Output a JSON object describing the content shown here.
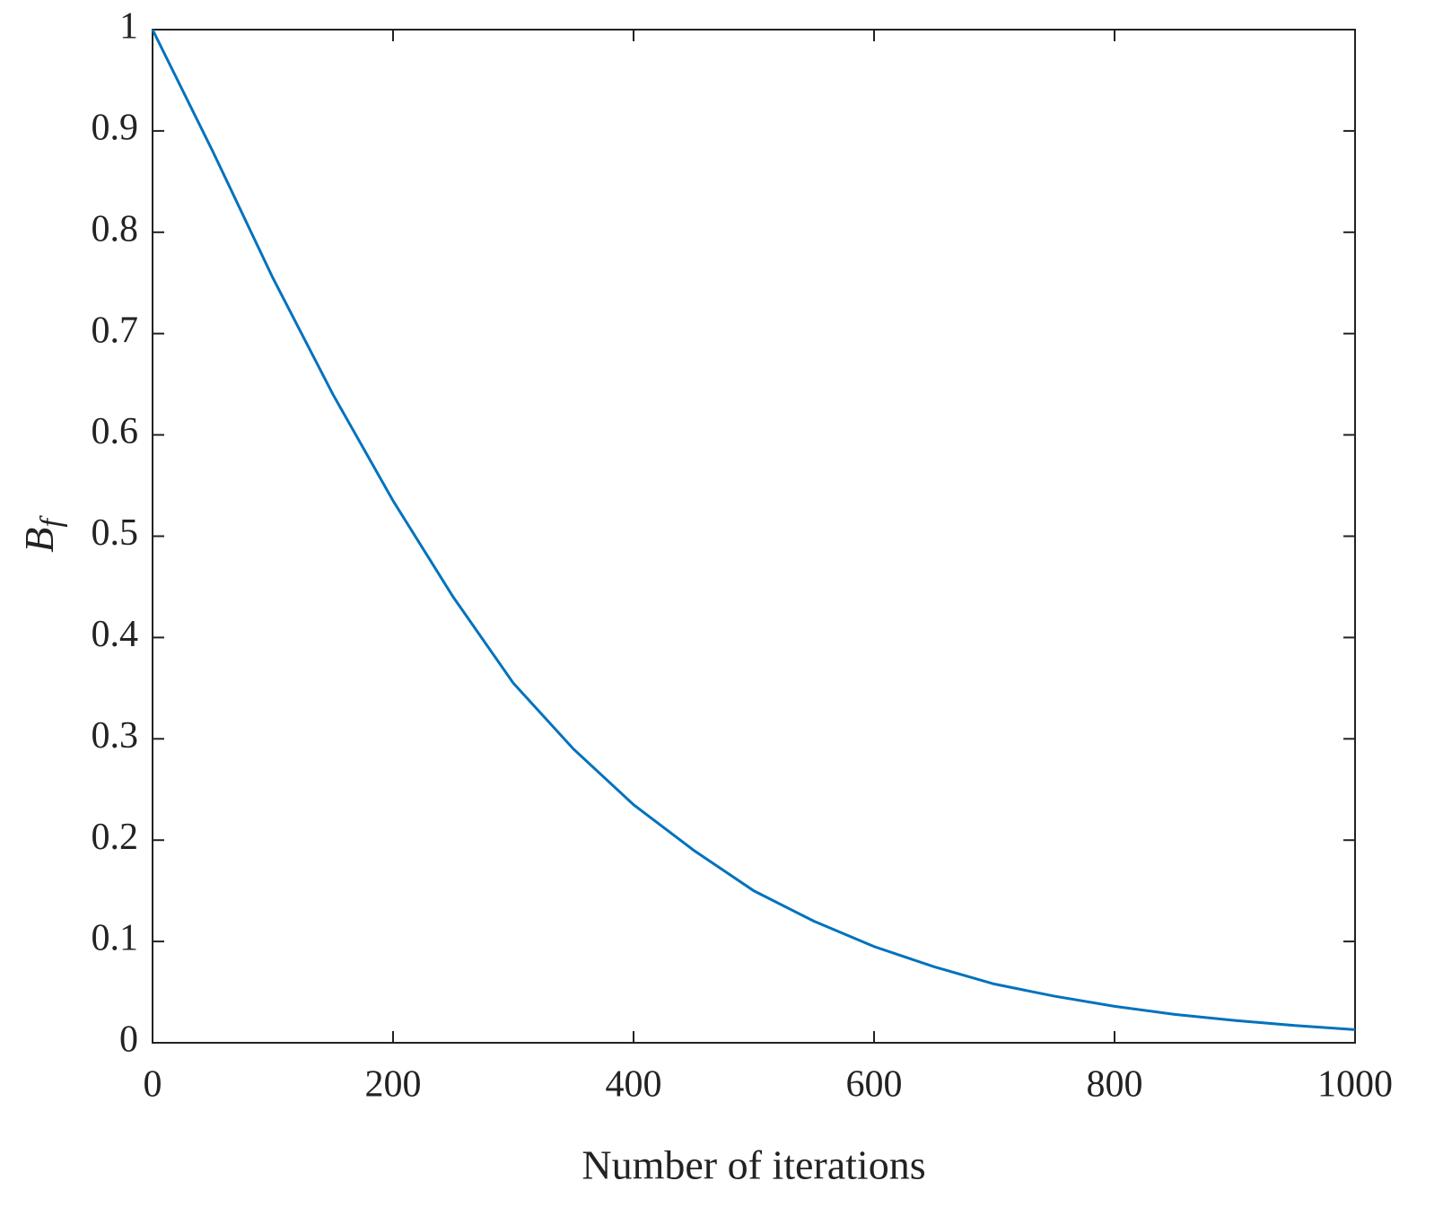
{
  "chart_data": {
    "type": "line",
    "xlabel": "Number of iterations",
    "ylabel": {
      "text": "B",
      "subscript": "f"
    },
    "x": [
      0,
      50,
      100,
      150,
      200,
      250,
      300,
      350,
      400,
      450,
      500,
      550,
      600,
      650,
      700,
      750,
      800,
      850,
      900,
      950,
      1000
    ],
    "series": [
      {
        "color": "#0072bd",
        "values": [
          1,
          0.88,
          0.755,
          0.64,
          0.535,
          0.44,
          0.355,
          0.29,
          0.235,
          0.19,
          0.15,
          0.12,
          0.095,
          0.075,
          0.058,
          0.046,
          0.036,
          0.028,
          0.022,
          0.017,
          0.013
        ]
      }
    ],
    "xlim": [
      0,
      1000
    ],
    "xticks": [
      0,
      200,
      400,
      600,
      800,
      1000
    ],
    "ylim": [
      0,
      1
    ],
    "yticks": [
      0,
      0.1,
      0.2,
      0.3,
      0.4,
      0.5,
      0.6,
      0.7,
      0.8,
      0.9,
      1
    ],
    "grid": false
  }
}
